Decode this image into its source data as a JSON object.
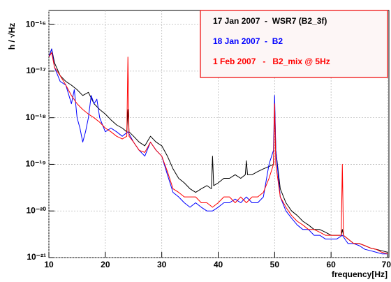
{
  "chart_data": {
    "type": "line",
    "y_label": "h / √Hz",
    "x_label": "frequency[Hz]",
    "log_y": true,
    "grid": true,
    "legend_position": "upper right",
    "xlim": [
      10,
      70
    ],
    "xticks": [
      10,
      20,
      30,
      40,
      50,
      60,
      70
    ],
    "ylim": [
      1e-21,
      2e-16
    ],
    "yticks": [
      {
        "value": 1e-21,
        "label": "10⁻²¹"
      },
      {
        "value": 1e-20,
        "label": "10⁻²⁰"
      },
      {
        "value": 1e-19,
        "label": "10⁻¹⁹"
      },
      {
        "value": 1e-18,
        "label": "10⁻¹⁸"
      },
      {
        "value": 1e-17,
        "label": "10⁻¹⁷"
      },
      {
        "value": 1e-16,
        "label": "10⁻¹⁶"
      }
    ],
    "series": [
      {
        "name": "17 Jan 2007  -  WSR7 (B2_3f)",
        "color": "#000000",
        "x": [
          10,
          10.5,
          11,
          12,
          13,
          14,
          15,
          16,
          17,
          18,
          19,
          20,
          21,
          22,
          23,
          23.8,
          24,
          24.2,
          25,
          26,
          27,
          28,
          29,
          30,
          31,
          32,
          33,
          34,
          35,
          36,
          37,
          38,
          38.8,
          39,
          39.2,
          40,
          41,
          42,
          43,
          44,
          44.8,
          45,
          45.2,
          46,
          47,
          48,
          49,
          49.8,
          50,
          50.2,
          51,
          52,
          53,
          54,
          55,
          56,
          57,
          58,
          59,
          60,
          61,
          61.8,
          62,
          62.2,
          63,
          64,
          65,
          66,
          67,
          68,
          69,
          70
        ],
        "values": [
          2e-17,
          3e-17,
          1.5e-17,
          8e-18,
          6e-18,
          5e-18,
          4e-18,
          3e-18,
          3.5e-18,
          2e-18,
          1.5e-18,
          1.2e-18,
          9e-19,
          7e-19,
          6e-19,
          5e-19,
          1.5e-18,
          5e-19,
          4e-19,
          3e-19,
          2.5e-19,
          4e-19,
          3e-19,
          2.5e-19,
          1.5e-19,
          8e-20,
          5e-20,
          4e-20,
          3e-20,
          2.5e-20,
          3e-20,
          3.5e-20,
          3e-20,
          1.5e-19,
          3.5e-20,
          4e-20,
          5e-20,
          5e-20,
          6e-20,
          5e-20,
          6e-20,
          1.2e-19,
          6e-20,
          6e-20,
          7e-20,
          8e-20,
          9e-20,
          1e-19,
          2e-18,
          2e-19,
          3e-20,
          1.5e-20,
          1e-20,
          8e-21,
          6e-21,
          5e-21,
          4e-21,
          4e-21,
          3.5e-21,
          3e-21,
          3e-21,
          3e-21,
          4e-21,
          3e-21,
          2.5e-21,
          2e-21,
          2e-21,
          1.8e-21,
          1.6e-21,
          1.5e-21,
          1.4e-21,
          1.3e-21
        ]
      },
      {
        "name": "18 Jan 2007  -  B2",
        "color": "#0000ff",
        "x": [
          10,
          10.5,
          11,
          12,
          13,
          14,
          14.5,
          15,
          15.5,
          16,
          16.5,
          17,
          17.5,
          18,
          18.5,
          19,
          20,
          21,
          22,
          23,
          24,
          25,
          26,
          27,
          28,
          29,
          30,
          31,
          32,
          33,
          34,
          35,
          36,
          37,
          38,
          39,
          40,
          41,
          42,
          43,
          44,
          45,
          46,
          47,
          48,
          49,
          49.8,
          50,
          50.2,
          51,
          52,
          53,
          54,
          55,
          56,
          57,
          58,
          59,
          60,
          61,
          62,
          63,
          64,
          65,
          66,
          67,
          68,
          69,
          70
        ],
        "values": [
          2e-17,
          3e-17,
          1.2e-17,
          6e-18,
          5e-18,
          2e-18,
          4e-18,
          1e-18,
          6e-19,
          3e-19,
          5e-19,
          1e-18,
          3e-18,
          2e-18,
          2.5e-18,
          1e-18,
          5e-19,
          6e-19,
          5e-19,
          4e-19,
          5e-19,
          3e-19,
          2e-19,
          1.5e-19,
          3e-19,
          2e-19,
          1.5e-19,
          6e-20,
          2.5e-20,
          2e-20,
          1.5e-20,
          1.2e-20,
          1.5e-20,
          1.2e-20,
          1e-20,
          1e-20,
          1.2e-20,
          1.5e-20,
          1.5e-20,
          1.8e-20,
          1.5e-20,
          2e-20,
          1.5e-20,
          1.5e-20,
          2e-20,
          1e-19,
          2e-19,
          3e-18,
          2e-19,
          2e-20,
          1e-20,
          7e-21,
          5e-21,
          4e-21,
          4e-21,
          3e-21,
          3e-21,
          2.5e-21,
          2.5e-21,
          2.5e-21,
          3e-21,
          2e-21,
          2e-21,
          1.8e-21,
          1.5e-21,
          1.4e-21,
          1.3e-21,
          1.2e-21,
          1.2e-21
        ]
      },
      {
        "name": "1 Feb 2007   -   B2_mix @ 5Hz",
        "color": "#ff0000",
        "x": [
          10,
          10.5,
          11,
          12,
          13,
          14,
          15,
          16,
          17,
          18,
          19,
          20,
          21,
          22,
          23,
          23.8,
          24,
          24.2,
          25,
          26,
          27,
          28,
          29,
          30,
          31,
          32,
          33,
          34,
          35,
          36,
          37,
          38,
          39,
          40,
          41,
          42,
          43,
          44,
          45,
          46,
          47,
          48,
          49,
          49.8,
          50,
          50.2,
          51,
          52,
          53,
          54,
          55,
          56,
          57,
          58,
          59,
          60,
          61,
          61.8,
          62,
          62.2,
          63,
          64,
          65,
          66,
          67,
          68,
          69,
          70
        ],
        "values": [
          2e-17,
          2.5e-17,
          1.2e-17,
          8e-18,
          5e-18,
          3e-18,
          2e-18,
          1.5e-18,
          1.2e-18,
          1e-18,
          8e-19,
          6e-19,
          5e-19,
          4e-19,
          3.5e-19,
          4e-19,
          2e-17,
          4e-19,
          3e-19,
          2e-19,
          1.8e-19,
          3e-19,
          2e-19,
          1.5e-19,
          7e-20,
          3e-20,
          2.5e-20,
          2e-20,
          2e-20,
          2e-20,
          1.5e-20,
          1.5e-20,
          1.2e-20,
          1.5e-20,
          2e-20,
          2e-20,
          1.5e-20,
          2e-20,
          1.5e-20,
          2e-20,
          2e-20,
          2.5e-20,
          5e-20,
          1e-19,
          2e-18,
          1e-19,
          2e-20,
          1.2e-20,
          8e-21,
          6e-21,
          5e-21,
          4e-21,
          4e-21,
          3.5e-21,
          3e-21,
          3e-21,
          3e-21,
          3e-21,
          1e-19,
          3e-21,
          2.5e-21,
          2e-21,
          2e-21,
          1.8e-21,
          1.6e-21,
          1.5e-21,
          1.3e-21,
          1.2e-21
        ]
      }
    ]
  }
}
